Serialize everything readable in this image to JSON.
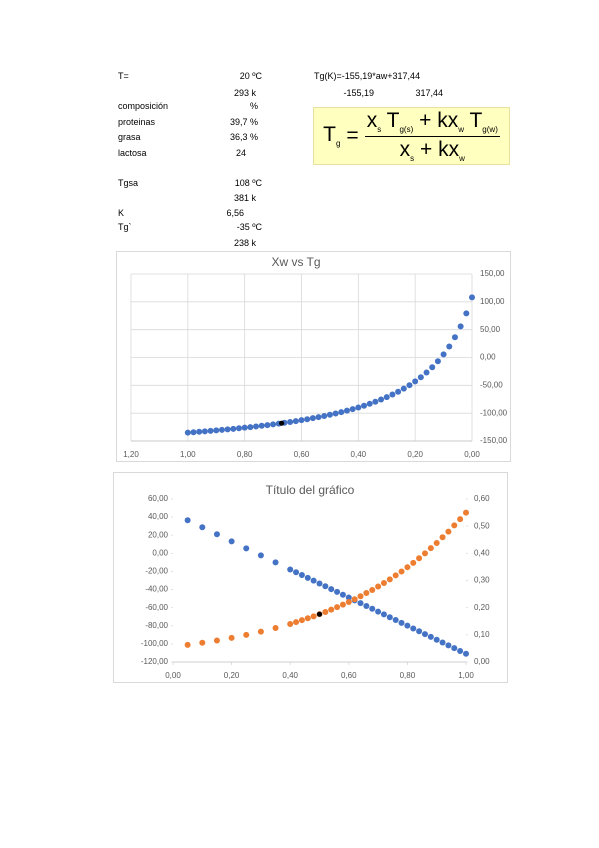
{
  "sheet": {
    "rows": [
      {
        "label": "T=",
        "value": "20 ºC"
      },
      {
        "value": "293 k"
      },
      {
        "label": "composición",
        "value": "%"
      },
      {
        "label": "proteinas",
        "value": "39,7 %"
      },
      {
        "label": "grasa",
        "value": "36,3 %"
      },
      {
        "label": "lactosa",
        "value": "24"
      },
      {
        "label": "Tgsa",
        "value": "108 ºC"
      },
      {
        "value": "381 k"
      },
      {
        "label": "K",
        "value": "6,56"
      },
      {
        "label": "Tg`",
        "value": "-35 ºC"
      },
      {
        "value": "238 k"
      }
    ],
    "regression": {
      "equation": "Tg(K)=-155,19*aw+317,44",
      "slope": "-155,19",
      "intercept": "317,44"
    }
  },
  "formula": {
    "lhs": {
      "text": "T",
      "sub": "g"
    },
    "equals": "=",
    "numerator": [
      {
        "text": "x",
        "sub": "s"
      },
      {
        "text": "T",
        "sub": "g(s)"
      },
      {
        "text": "+ kx",
        "sub": "w"
      },
      {
        "text": "T",
        "sub": "g(w)"
      }
    ],
    "denominator": [
      {
        "text": "x",
        "sub": "s"
      },
      {
        "text": "+ kx",
        "sub": "w"
      }
    ]
  },
  "chart_data": [
    {
      "type": "scatter",
      "title": "Xw vs Tg",
      "grid": true,
      "y_axis_side": "right",
      "xlim": [
        1.2,
        0
      ],
      "ylim": [
        -150,
        150
      ],
      "xticks": [
        {
          "value": 1.2,
          "label": "1,20"
        },
        {
          "value": 1.0,
          "label": "1,00"
        },
        {
          "value": 0.8,
          "label": "0,80"
        },
        {
          "value": 0.6,
          "label": "0,60"
        },
        {
          "value": 0.4,
          "label": "0,40"
        },
        {
          "value": 0.2,
          "label": "0,20"
        },
        {
          "value": 0,
          "label": "0,00"
        }
      ],
      "yticks": [
        {
          "value": -150,
          "label": "-150,00"
        },
        {
          "value": -100,
          "label": "-100,00"
        },
        {
          "value": -50,
          "label": "-50,00"
        },
        {
          "value": 0,
          "label": "0,00"
        },
        {
          "value": 50,
          "label": "50,00"
        },
        {
          "value": 100,
          "label": "100,00"
        },
        {
          "value": 150,
          "label": "150,00"
        }
      ],
      "series": [
        {
          "color": "#4472c4",
          "x": [
            0,
            0.02,
            0.04,
            0.06,
            0.08,
            0.1,
            0.12,
            0.14,
            0.16,
            0.18,
            0.2,
            0.22,
            0.24,
            0.26,
            0.28,
            0.3,
            0.32,
            0.34,
            0.36,
            0.38,
            0.4,
            0.42,
            0.44,
            0.46,
            0.48,
            0.5,
            0.52,
            0.54,
            0.56,
            0.58,
            0.6,
            0.62,
            0.64,
            0.66,
            0.68,
            0.7,
            0.72,
            0.74,
            0.76,
            0.78,
            0.8,
            0.82,
            0.84,
            0.86,
            0.88,
            0.9,
            0.92,
            0.94,
            0.96,
            0.98,
            1.0
          ],
          "values": [
            108,
            79.31,
            55.84,
            36.28,
            19.73,
            5.55,
            -6.74,
            -17.49,
            -26.98,
            -35.41,
            -42.95,
            -49.74,
            -55.89,
            -61.47,
            -66.57,
            -71.24,
            -75.54,
            -79.51,
            -83.19,
            -86.6,
            -89.78,
            -92.74,
            -95.52,
            -98.12,
            -100.56,
            -102.86,
            -105.02,
            -107.07,
            -109.01,
            -110.84,
            -112.58,
            -114.24,
            -115.81,
            -117.31,
            -118.74,
            -120.1,
            -121.4,
            -122.65,
            -123.84,
            -124.98,
            -126.08,
            -127.13,
            -128.14,
            -129.11,
            -130.05,
            -130.95,
            -131.82,
            -132.66,
            -133.47,
            -134.25,
            -135
          ]
        },
        {
          "color": "#000000",
          "x": [
            0.67
          ],
          "values": [
            -118.0
          ]
        }
      ]
    },
    {
      "type": "scatter",
      "title": "Título del gráfico",
      "grid": false,
      "y_axis_side": "left",
      "xlim": [
        0,
        1
      ],
      "ylim": [
        -120,
        60
      ],
      "y2lim": [
        0,
        0.6
      ],
      "xticks": [
        {
          "value": 0,
          "label": "0,00"
        },
        {
          "value": 0.2,
          "label": "0,20"
        },
        {
          "value": 0.4,
          "label": "0,40"
        },
        {
          "value": 0.6,
          "label": "0,60"
        },
        {
          "value": 0.8,
          "label": "0,80"
        },
        {
          "value": 1,
          "label": "1,00"
        }
      ],
      "yticks": [
        {
          "value": -120,
          "label": "-120,00"
        },
        {
          "value": -100,
          "label": "-100,00"
        },
        {
          "value": -80,
          "label": "-80,00"
        },
        {
          "value": -60,
          "label": "-60,00"
        },
        {
          "value": -40,
          "label": "-40,00"
        },
        {
          "value": -20,
          "label": "-20,00"
        },
        {
          "value": 0,
          "label": "0,00"
        },
        {
          "value": 20,
          "label": "20,00"
        },
        {
          "value": 40,
          "label": "40,00"
        },
        {
          "value": 60,
          "label": "60,00"
        }
      ],
      "y2ticks": [
        {
          "value": 0,
          "label": "0,00"
        },
        {
          "value": 0.1,
          "label": "0,10"
        },
        {
          "value": 0.2,
          "label": "0,20"
        },
        {
          "value": 0.3,
          "label": "0,30"
        },
        {
          "value": 0.4,
          "label": "0,40"
        },
        {
          "value": 0.5,
          "label": "0,50"
        },
        {
          "value": 0.6,
          "label": "0,60"
        }
      ],
      "series": [
        {
          "color": "#4472c4",
          "x": [
            0.05,
            0.1,
            0.15,
            0.2,
            0.25,
            0.3,
            0.35,
            0.4,
            0.42,
            0.44,
            0.46,
            0.48,
            0.5,
            0.52,
            0.54,
            0.56,
            0.58,
            0.6,
            0.62,
            0.64,
            0.66,
            0.68,
            0.7,
            0.72,
            0.74,
            0.76,
            0.78,
            0.8,
            0.82,
            0.84,
            0.86,
            0.88,
            0.9,
            0.92,
            0.94,
            0.96,
            0.98,
            1.0
          ],
          "values": [
            36.53,
            28.77,
            21.01,
            13.25,
            5.49,
            -2.27,
            -10.03,
            -17.79,
            -20.89,
            -23.99,
            -27.1,
            -30.2,
            -33.31,
            -36.41,
            -39.51,
            -42.62,
            -45.72,
            -48.82,
            -51.93,
            -55.03,
            -58.14,
            -61.24,
            -64.34,
            -67.45,
            -70.55,
            -73.65,
            -76.76,
            -79.86,
            -82.97,
            -86.07,
            -89.17,
            -92.28,
            -95.38,
            -98.48,
            -101.59,
            -104.69,
            -107.8,
            -110.9
          ]
        },
        {
          "color": "#ed7d31",
          "axis": "y2",
          "x": [
            0.05,
            0.1,
            0.15,
            0.2,
            0.25,
            0.3,
            0.35,
            0.4,
            0.42,
            0.44,
            0.46,
            0.48,
            0.5,
            0.52,
            0.54,
            0.56,
            0.58,
            0.6,
            0.62,
            0.64,
            0.66,
            0.68,
            0.7,
            0.72,
            0.74,
            0.76,
            0.78,
            0.8,
            0.82,
            0.84,
            0.86,
            0.88,
            0.9,
            0.92,
            0.94,
            0.96,
            0.98,
            1.0
          ],
          "values": [
            0.063,
            0.071,
            0.079,
            0.089,
            0.1,
            0.112,
            0.125,
            0.14,
            0.147,
            0.154,
            0.161,
            0.168,
            0.176,
            0.184,
            0.193,
            0.202,
            0.211,
            0.221,
            0.231,
            0.242,
            0.254,
            0.265,
            0.278,
            0.291,
            0.304,
            0.319,
            0.333,
            0.349,
            0.365,
            0.382,
            0.4,
            0.419,
            0.438,
            0.459,
            0.48,
            0.503,
            0.526,
            0.55
          ]
        },
        {
          "color": "#000000",
          "axis": "y2",
          "x": [
            0.5
          ],
          "values": [
            0.176
          ]
        }
      ]
    }
  ]
}
